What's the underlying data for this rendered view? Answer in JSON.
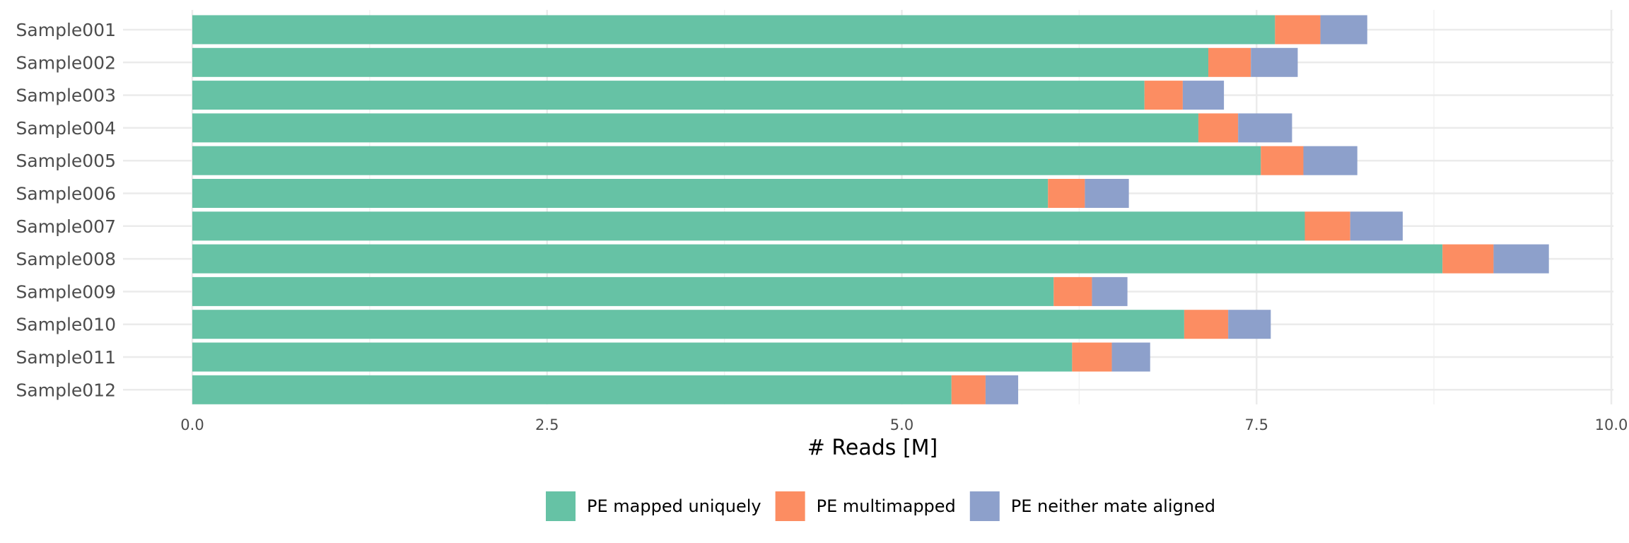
{
  "chart_data": {
    "type": "bar",
    "orientation": "horizontal",
    "stacked": true,
    "categories": [
      "Sample001",
      "Sample002",
      "Sample003",
      "Sample004",
      "Sample005",
      "Sample006",
      "Sample007",
      "Sample008",
      "Sample009",
      "Sample010",
      "Sample011",
      "Sample012"
    ],
    "series": [
      {
        "name": "PE mapped uniquely",
        "color": "#66c2a5",
        "values": [
          7.63,
          7.16,
          6.71,
          7.09,
          7.53,
          6.03,
          7.84,
          8.81,
          6.07,
          6.99,
          6.2,
          5.35
        ]
      },
      {
        "name": "PE multimapped",
        "color": "#fc8d62",
        "values": [
          0.32,
          0.3,
          0.27,
          0.28,
          0.3,
          0.26,
          0.32,
          0.36,
          0.27,
          0.31,
          0.28,
          0.24
        ]
      },
      {
        "name": "PE neither mate aligned",
        "color": "#8da0cb",
        "values": [
          0.33,
          0.33,
          0.29,
          0.38,
          0.38,
          0.31,
          0.37,
          0.39,
          0.25,
          0.3,
          0.27,
          0.23
        ]
      }
    ],
    "xlabel": "# Reads [M]",
    "ylabel": "",
    "xlim": [
      0,
      10
    ],
    "xticks": [
      0,
      2.5,
      5,
      7.5,
      10
    ],
    "xtick_labels": [
      "0.0",
      "2.5",
      "5.0",
      "7.5",
      "10.0"
    ],
    "grid": true,
    "legend_position": "bottom"
  }
}
